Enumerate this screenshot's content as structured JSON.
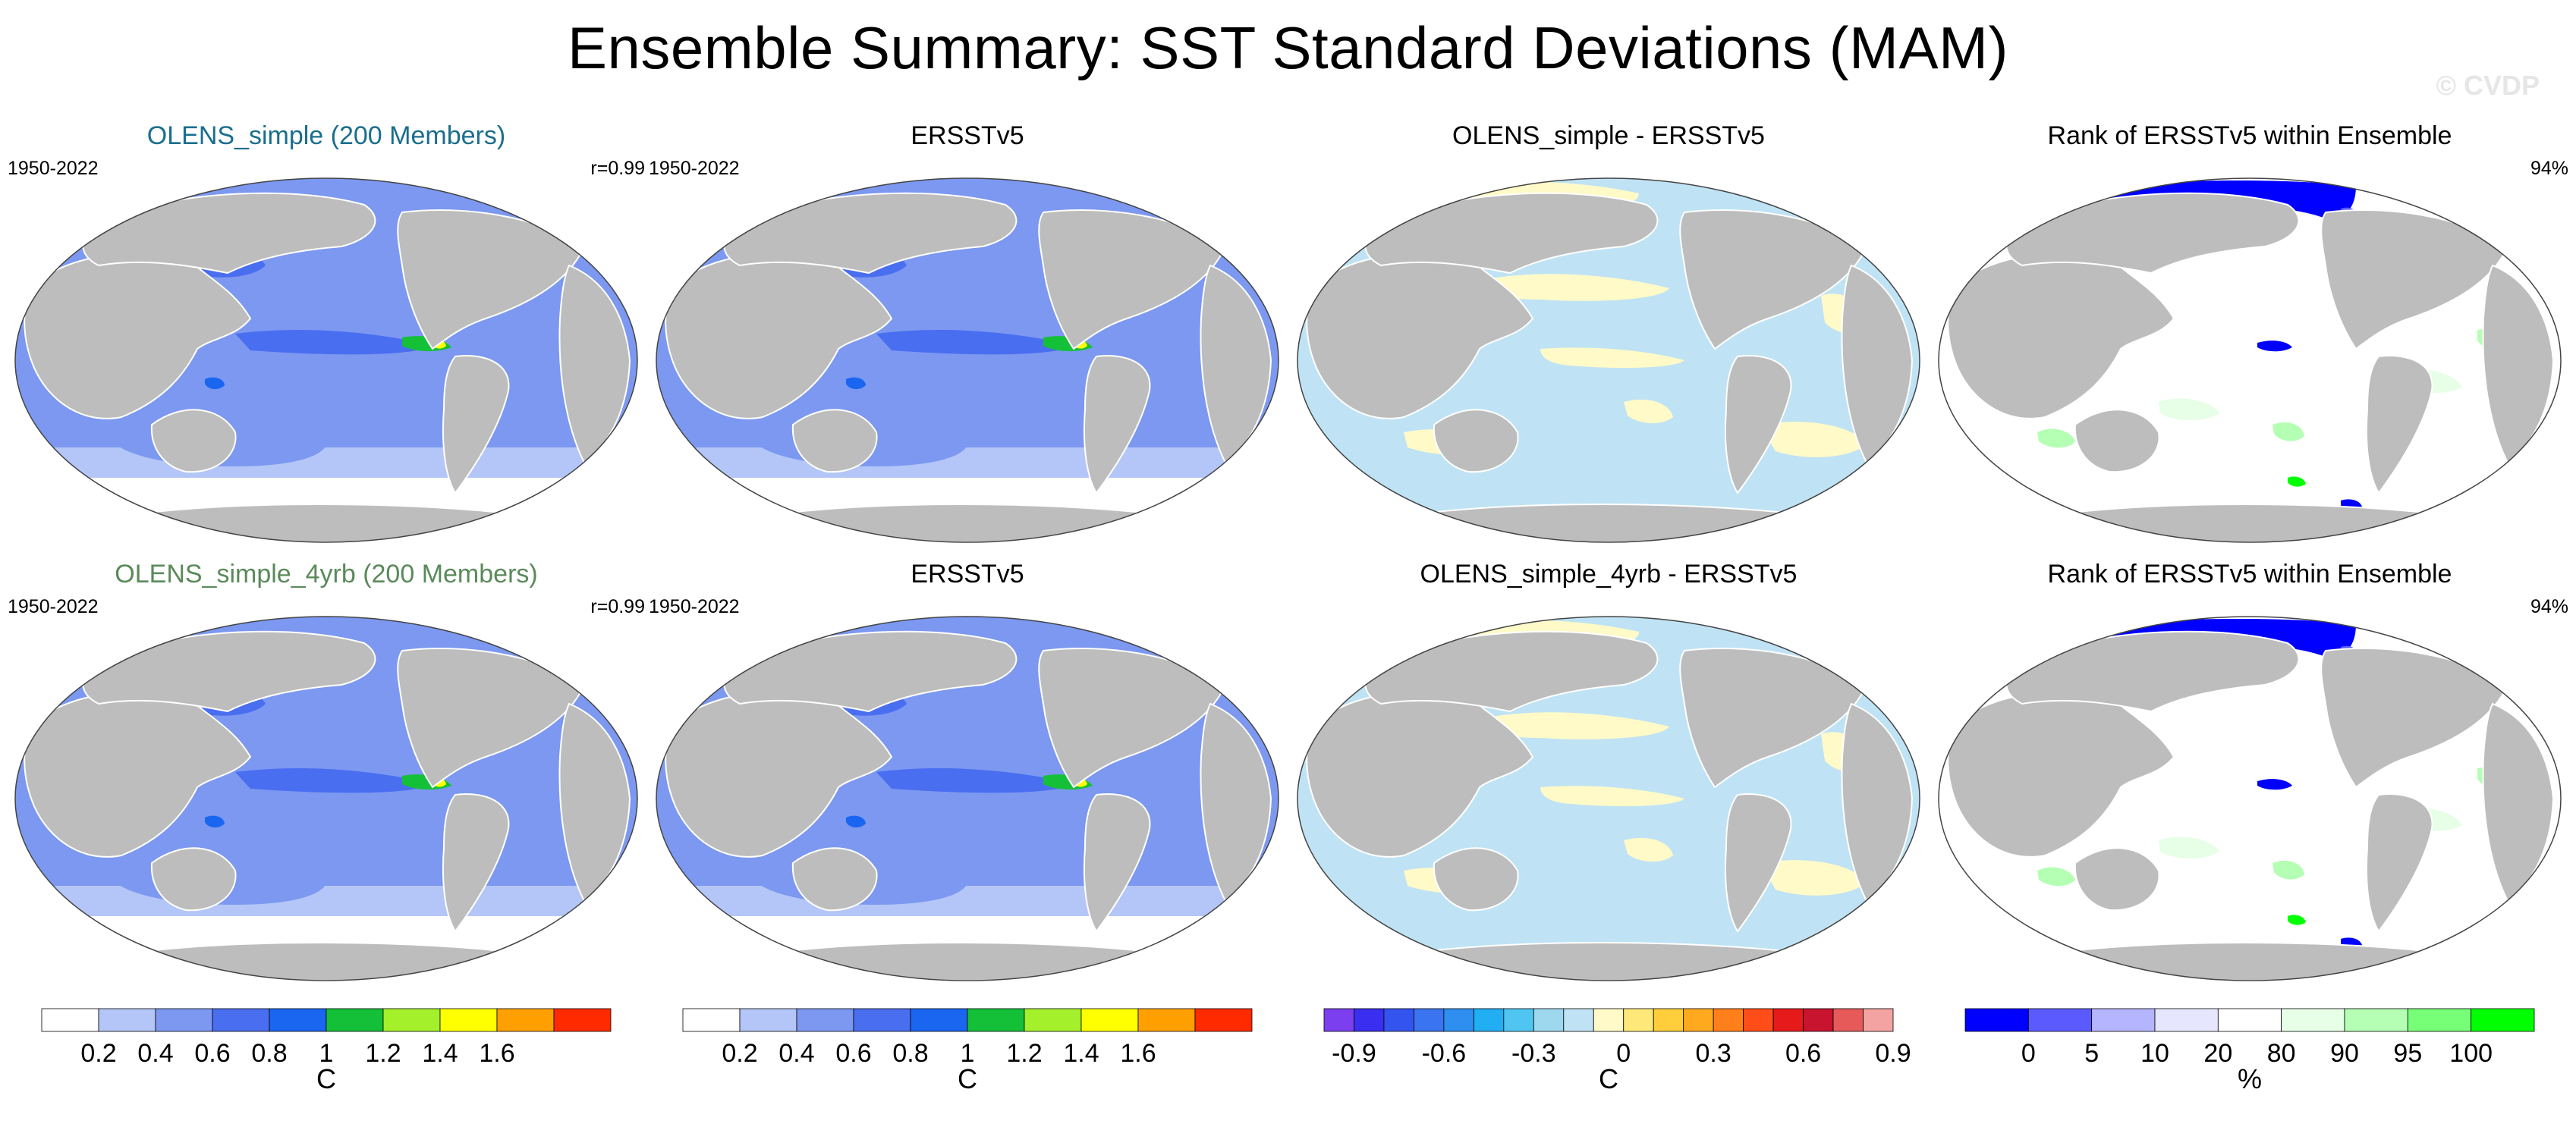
{
  "figure": {
    "title": "Ensemble Summary: SST Standard Deviations (MAM)",
    "watermark": "© CVDP"
  },
  "colors": {
    "land": "#bdbdbd",
    "ocean_white": "#ffffff",
    "sd_levels": [
      "#ffffff",
      "#b4c6f7",
      "#7c98f0",
      "#4a6ef0",
      "#1a66f0",
      "#14c038",
      "#a4f02a",
      "#ffff00",
      "#ff9f00",
      "#ff2a00"
    ],
    "diff_levels": [
      "#7b3ff0",
      "#3a2ef0",
      "#3454f0",
      "#3a74f0",
      "#2f8ff0",
      "#21aef2",
      "#51c5f2",
      "#9dd8ef",
      "#bfe3f4",
      "#fffac8",
      "#ffe87a",
      "#ffce3a",
      "#ffaa1e",
      "#ff7f1a",
      "#ff4d1a",
      "#e61a1a",
      "#c8142e",
      "#e65a5a",
      "#f4a3a3"
    ],
    "rank_levels": [
      "#0000ff",
      "#5a5aff",
      "#b4b4ff",
      "#e6e6ff",
      "#ffffff",
      "#e6ffe6",
      "#b4ffb4",
      "#78ff78",
      "#00ff00"
    ]
  },
  "panels": [
    {
      "title": "OLENS_simple (200 Members)",
      "title_color": "#1a6e8e",
      "left": "1950-2022",
      "right": "r=0.99",
      "kind": "sd"
    },
    {
      "title": "ERSSTv5",
      "title_color": "#000000",
      "left": "1950-2022",
      "right": "",
      "kind": "sd"
    },
    {
      "title": "OLENS_simple - ERSSTv5",
      "title_color": "#000000",
      "left": "",
      "right": "",
      "kind": "diff"
    },
    {
      "title": "Rank of ERSSTv5 within Ensemble",
      "title_color": "#000000",
      "left": "",
      "right": "94%",
      "kind": "rank"
    },
    {
      "title": "OLENS_simple_4yrb (200 Members)",
      "title_color": "#5a8a5a",
      "left": "1950-2022",
      "right": "r=0.99",
      "kind": "sd"
    },
    {
      "title": "ERSSTv5",
      "title_color": "#000000",
      "left": "1950-2022",
      "right": "",
      "kind": "sd"
    },
    {
      "title": "OLENS_simple_4yrb - ERSSTv5",
      "title_color": "#000000",
      "left": "",
      "right": "",
      "kind": "diff"
    },
    {
      "title": "Rank of ERSSTv5 within Ensemble",
      "title_color": "#000000",
      "left": "",
      "right": "94%",
      "kind": "rank"
    }
  ],
  "colorbars": [
    {
      "unit": "C",
      "kind": "sd",
      "labels": [
        "0.2",
        "0.4",
        "0.6",
        "0.8",
        "1",
        "1.2",
        "1.4",
        "1.6"
      ]
    },
    {
      "unit": "C",
      "kind": "sd",
      "labels": [
        "0.2",
        "0.4",
        "0.6",
        "0.8",
        "1",
        "1.2",
        "1.4",
        "1.6"
      ]
    },
    {
      "unit": "C",
      "kind": "diff",
      "labels": [
        "-0.9",
        "-0.6",
        "-0.3",
        "0",
        "0.3",
        "0.6",
        "0.9"
      ]
    },
    {
      "unit": "%",
      "kind": "rank",
      "labels": [
        "0",
        "5",
        "10",
        "20",
        "80",
        "90",
        "95",
        "100"
      ]
    }
  ],
  "chart_data": {
    "type": "heatmap",
    "title": "Ensemble Summary: SST Standard Deviations (MAM)",
    "sd_colorbar": {
      "levels": [
        0.2,
        0.4,
        0.6,
        0.8,
        1,
        1.2,
        1.4,
        1.6
      ],
      "unit": "C"
    },
    "diff_colorbar": {
      "levels": [
        -0.9,
        -0.6,
        -0.3,
        0,
        0.3,
        0.6,
        0.9
      ],
      "unit": "C"
    },
    "rank_colorbar": {
      "levels": [
        0,
        5,
        10,
        20,
        80,
        90,
        95,
        100
      ],
      "unit": "%"
    },
    "panels": [
      {
        "name": "OLENS_simple (200 Members)",
        "period": "1950-2022",
        "pattern_correlation": 0.99
      },
      {
        "name": "ERSSTv5",
        "period": "1950-2022"
      },
      {
        "name": "OLENS_simple - ERSSTv5"
      },
      {
        "name": "Rank of ERSSTv5 within Ensemble",
        "percent": 94
      },
      {
        "name": "OLENS_simple_4yrb (200 Members)",
        "period": "1950-2022",
        "pattern_correlation": 0.99
      },
      {
        "name": "ERSSTv5",
        "period": "1950-2022"
      },
      {
        "name": "OLENS_simple_4yrb - ERSSTv5"
      },
      {
        "name": "Rank of ERSSTv5 within Ensemble",
        "percent": 94
      }
    ]
  }
}
